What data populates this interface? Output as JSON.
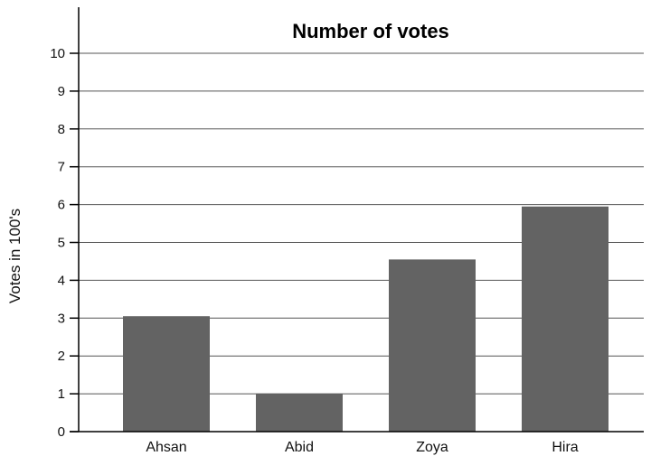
{
  "chart_data": {
    "type": "bar",
    "title": "Number of votes",
    "xlabel": "",
    "ylabel": "Votes in 100's",
    "categories": [
      "Ahsan",
      "Abid",
      "Zoya",
      "Hira"
    ],
    "values": [
      3.05,
      1.0,
      4.55,
      5.95
    ],
    "ylim": [
      0,
      10
    ],
    "yticks": [
      0,
      1,
      2,
      3,
      4,
      5,
      6,
      7,
      8,
      9,
      10
    ],
    "grid": true,
    "bar_color": "#636363",
    "legend": "none"
  }
}
